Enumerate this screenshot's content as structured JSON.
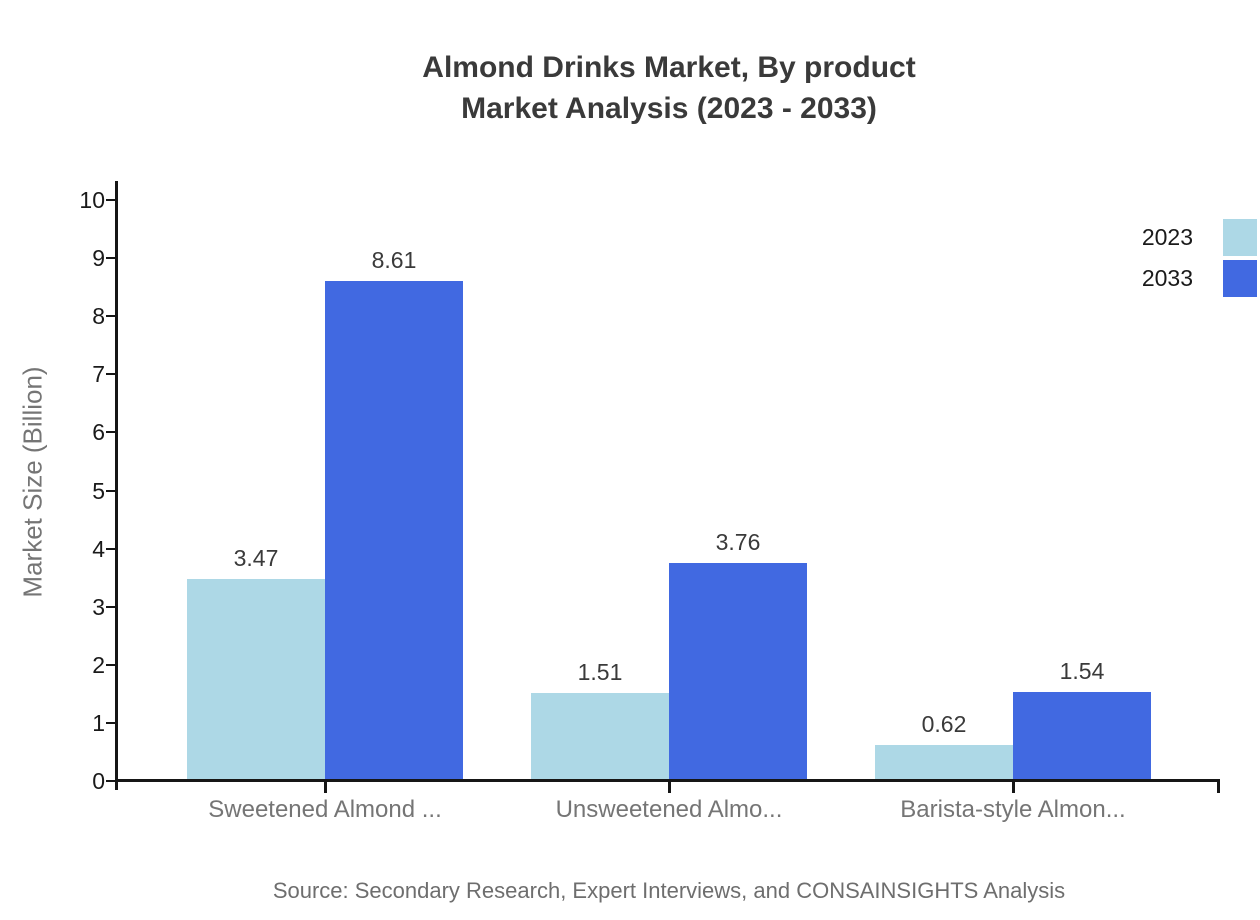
{
  "title": {
    "line1": "Almond Drinks Market, By product",
    "line2": "Market Analysis (2023 - 2033)"
  },
  "source_note": "Source: Secondary Research, Expert Interviews, and CONSAINSIGHTS Analysis",
  "colors": {
    "series_2023": "#ADD8E6",
    "series_2033": "#4169E1",
    "axis": "#161616",
    "title_text": "#3A3A3A",
    "muted_text": "#757575"
  },
  "chart_data": {
    "type": "bar",
    "title": "Almond Drinks Market, By product Market Analysis (2023 - 2033)",
    "categories": [
      "Sweetened Almond ...",
      "Unsweetened Almo...",
      "Barista-style Almon..."
    ],
    "series": [
      {
        "name": "2023",
        "color": "#ADD8E6",
        "values": [
          3.47,
          1.51,
          0.62
        ]
      },
      {
        "name": "2033",
        "color": "#4169E1",
        "values": [
          8.61,
          3.76,
          1.54
        ]
      }
    ],
    "xlabel": "",
    "ylabel": "Market Size (Billion)",
    "ylim": [
      0,
      10
    ],
    "yticks": [
      0,
      1,
      2,
      3,
      4,
      5,
      6,
      7,
      8,
      9,
      10
    ],
    "grid": false,
    "legend_position": "top-right",
    "value_labels": true
  }
}
